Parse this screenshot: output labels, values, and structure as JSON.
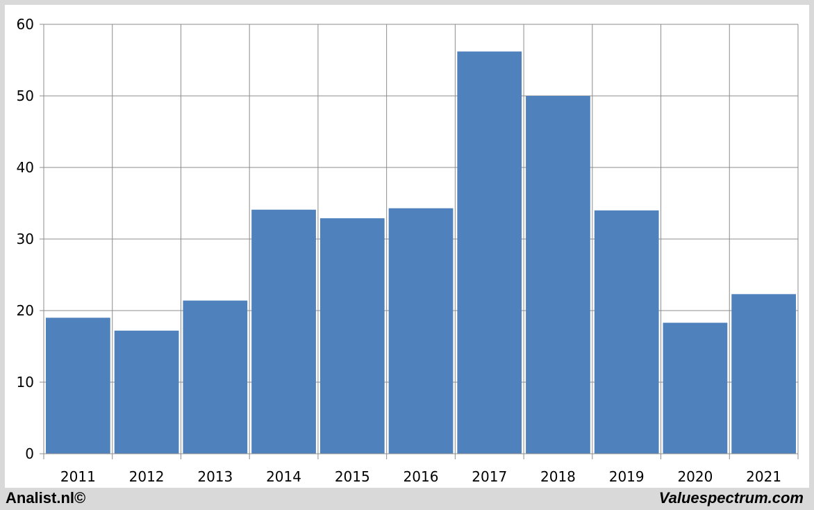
{
  "footer": {
    "left_text": "Analist.nl©",
    "right_text": "Valuespectrum.com"
  },
  "colors": {
    "bar": "#4f81bd",
    "grid": "#8c8c8c",
    "background": "#ffffff",
    "frame": "#d9d9d9"
  },
  "chart_data": {
    "type": "bar",
    "categories": [
      "2011",
      "2012",
      "2013",
      "2014",
      "2015",
      "2016",
      "2017",
      "2018",
      "2019",
      "2020",
      "2021"
    ],
    "values": [
      19.0,
      17.2,
      21.4,
      34.1,
      32.9,
      34.3,
      56.2,
      50.0,
      34.0,
      18.3,
      22.3
    ],
    "title": "",
    "xlabel": "",
    "ylabel": "",
    "ylim": [
      0,
      60
    ],
    "yticks": [
      "0",
      "10",
      "20",
      "30",
      "40",
      "50",
      "60"
    ],
    "grid": true,
    "legend": "none"
  }
}
